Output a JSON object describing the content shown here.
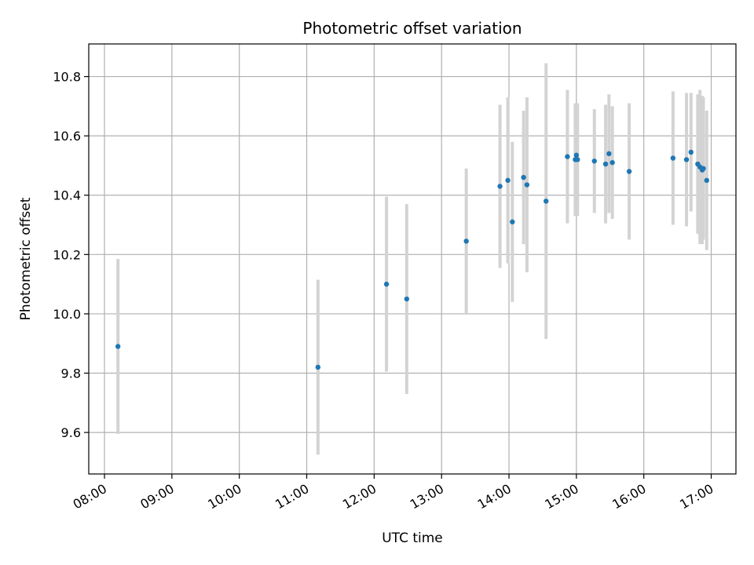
{
  "chart_data": {
    "type": "scatter",
    "title": "Photometric offset variation",
    "xlabel": "UTC time",
    "ylabel": "Photometric offset",
    "xlim": [
      "07:46",
      "17:22"
    ],
    "ylim": [
      9.46,
      10.91
    ],
    "x_ticks": [
      "08:00",
      "09:00",
      "10:00",
      "11:00",
      "12:00",
      "13:00",
      "14:00",
      "15:00",
      "16:00",
      "17:00"
    ],
    "y_ticks": [
      "9.6",
      "9.8",
      "10.0",
      "10.2",
      "10.4",
      "10.6",
      "10.8"
    ],
    "grid": true,
    "colors": {
      "point": "#1f77b4",
      "errorbar": "#d3d3d3",
      "grid": "#b0b0b0"
    },
    "points": [
      {
        "x": "08:12",
        "y": 9.89,
        "err": 0.295
      },
      {
        "x": "11:10",
        "y": 9.82,
        "err": 0.295
      },
      {
        "x": "12:11",
        "y": 10.1,
        "err": 0.295
      },
      {
        "x": "12:29",
        "y": 10.05,
        "err": 0.32
      },
      {
        "x": "13:22",
        "y": 10.245,
        "err": 0.245
      },
      {
        "x": "13:52",
        "y": 10.43,
        "err": 0.275
      },
      {
        "x": "13:59",
        "y": 10.45,
        "err": 0.28
      },
      {
        "x": "14:03",
        "y": 10.31,
        "err": 0.27
      },
      {
        "x": "14:13",
        "y": 10.46,
        "err": 0.225
      },
      {
        "x": "14:16",
        "y": 10.435,
        "err": 0.295
      },
      {
        "x": "14:33",
        "y": 10.38,
        "err": 0.465
      },
      {
        "x": "14:52",
        "y": 10.53,
        "err": 0.225
      },
      {
        "x": "14:59",
        "y": 10.52,
        "err": 0.19
      },
      {
        "x": "15:00",
        "y": 10.535,
        "err": 0.175
      },
      {
        "x": "15:01",
        "y": 10.52,
        "err": 0.19
      },
      {
        "x": "15:16",
        "y": 10.515,
        "err": 0.175
      },
      {
        "x": "15:26",
        "y": 10.505,
        "err": 0.2
      },
      {
        "x": "15:29",
        "y": 10.54,
        "err": 0.2
      },
      {
        "x": "15:32",
        "y": 10.51,
        "err": 0.19
      },
      {
        "x": "15:47",
        "y": 10.48,
        "err": 0.23
      },
      {
        "x": "16:26",
        "y": 10.525,
        "err": 0.225
      },
      {
        "x": "16:38",
        "y": 10.52,
        "err": 0.225
      },
      {
        "x": "16:42",
        "y": 10.545,
        "err": 0.2
      },
      {
        "x": "16:48",
        "y": 10.505,
        "err": 0.235
      },
      {
        "x": "16:50",
        "y": 10.495,
        "err": 0.26
      },
      {
        "x": "16:52",
        "y": 10.485,
        "err": 0.25
      },
      {
        "x": "16:53",
        "y": 10.49,
        "err": 0.24
      },
      {
        "x": "16:56",
        "y": 10.45,
        "err": 0.235
      }
    ]
  }
}
